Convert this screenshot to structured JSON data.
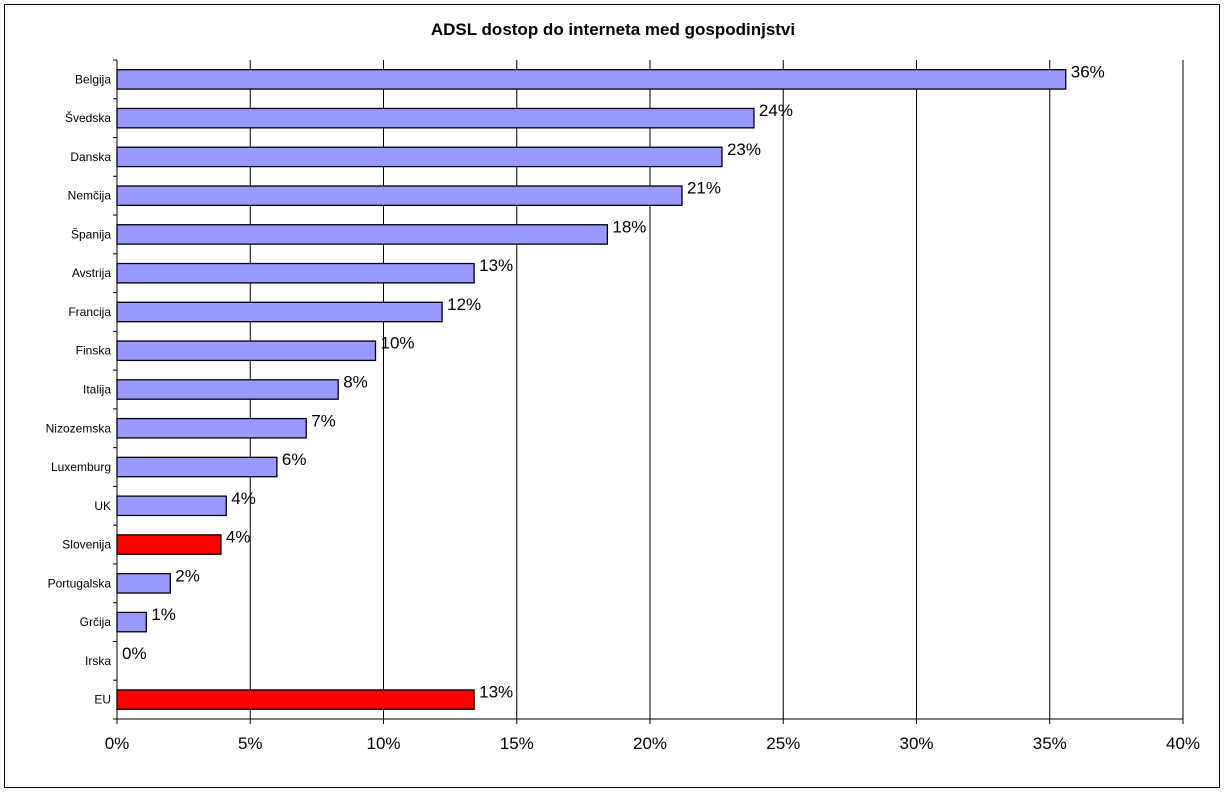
{
  "chart_data": {
    "type": "bar",
    "orientation": "horizontal",
    "title": "ADSL dostop do interneta med gospodinjstvi",
    "xlabel": "",
    "ylabel": "",
    "categories": [
      "Belgija",
      "Švedska",
      "Danska",
      "Nemčija",
      "Španija",
      "Avstrija",
      "Francija",
      "Finska",
      "Italija",
      "Nizozemska",
      "Luxemburg",
      "UK",
      "Slovenija",
      "Portugalska",
      "Grčija",
      "Irska",
      "EU"
    ],
    "values": [
      35.6,
      23.9,
      22.7,
      21.2,
      18.4,
      13.4,
      12.2,
      9.7,
      8.3,
      7.1,
      6.0,
      4.1,
      3.9,
      2.0,
      1.1,
      0.0,
      13.4
    ],
    "data_labels": [
      "36%",
      "24%",
      "23%",
      "21%",
      "18%",
      "13%",
      "12%",
      "10%",
      "8%",
      "7%",
      "6%",
      "4%",
      "4%",
      "2%",
      "1%",
      "0%",
      "13%"
    ],
    "bar_colors": [
      "#9999ff",
      "#9999ff",
      "#9999ff",
      "#9999ff",
      "#9999ff",
      "#9999ff",
      "#9999ff",
      "#9999ff",
      "#9999ff",
      "#9999ff",
      "#9999ff",
      "#9999ff",
      "#ff0000",
      "#9999ff",
      "#9999ff",
      "#9999ff",
      "#ff0000"
    ],
    "xlim": [
      0,
      40
    ],
    "x_ticks": [
      0,
      5,
      10,
      15,
      20,
      25,
      30,
      35,
      40
    ],
    "x_tick_labels": [
      "0%",
      "5%",
      "10%",
      "15%",
      "20%",
      "25%",
      "30%",
      "35%",
      "40%"
    ],
    "grid": "vertical",
    "legend": "none"
  }
}
